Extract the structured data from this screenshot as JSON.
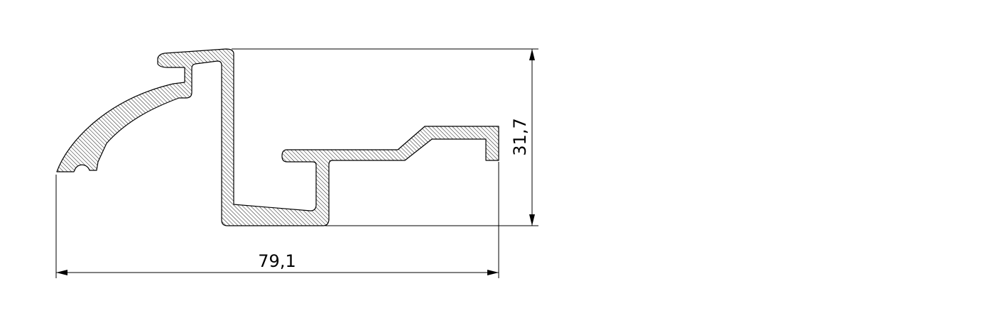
{
  "dimensions": {
    "width_label": "79,1",
    "height_label": "31,7"
  },
  "colors": {
    "line": "#000000",
    "hatch": "#000000",
    "background": "#ffffff"
  }
}
